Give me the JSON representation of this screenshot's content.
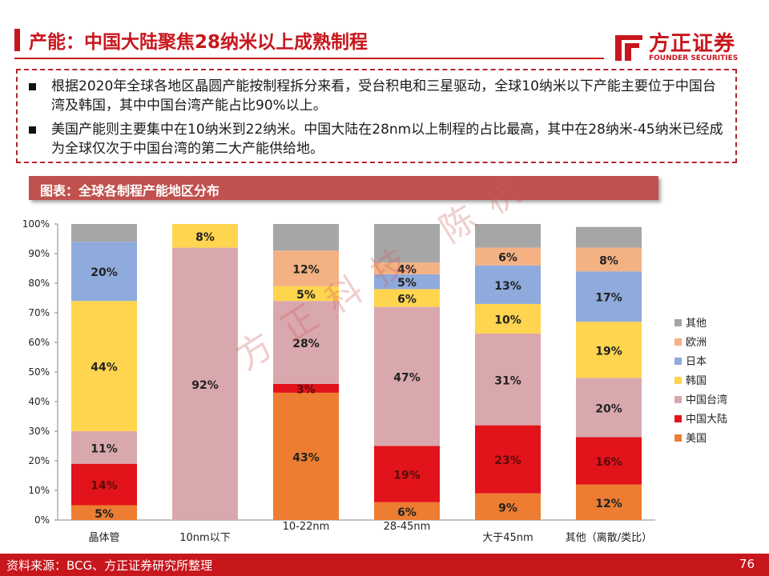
{
  "header": {
    "title": "产能：中国大陆聚焦28纳米以上成熟制程",
    "logo_cn": "方正证券",
    "logo_en": "FOUNDER SECURITIES"
  },
  "notes": [
    "根据2020年全球各地区晶圆产能按制程拆分来看，受台积电和三星驱动，全球10纳米以下产能主要位于中国台湾及韩国，其中中国台湾产能占比90%以上。",
    "美国产能则主要集中在10纳米到22纳米。中国大陆在28nm以上制程的占比最高，其中在28纳米-45纳米已经成为全球仅次于中国台湾的第二大产能供给地。"
  ],
  "chart_banner": "图表：全球各制程产能地区分布",
  "watermark": "方正科技 陈杭",
  "footer": {
    "source": "资料来源：BCG、方正证券研究所整理",
    "page": "76"
  },
  "colors": {
    "brand_red": "#c8161d",
    "美国": "#ed7d31",
    "中国大陆": "#e3131b",
    "中国台湾": "#d9a8ad",
    "韩国": "#ffd44f",
    "日本": "#8faadc",
    "欧洲": "#f4b183",
    "其他": "#a6a6a6"
  },
  "chart_data": {
    "type": "bar",
    "stacked": true,
    "percent": true,
    "categories": [
      "晶体管",
      "10nm以下",
      "10-22nm",
      "28-45nm",
      "大于45nm",
      "其他（离散/类比）"
    ],
    "series": [
      {
        "name": "美国",
        "values": [
          5,
          0,
          43,
          6,
          9,
          12
        ],
        "labels": [
          "5%",
          "",
          "43%",
          "6%",
          "9%",
          "12%"
        ]
      },
      {
        "name": "中国大陆",
        "values": [
          14,
          0,
          3,
          19,
          23,
          16
        ],
        "labels": [
          "14%",
          "",
          "3%",
          "19%",
          "23%",
          "16%"
        ]
      },
      {
        "name": "中国台湾",
        "values": [
          11,
          92,
          28,
          47,
          31,
          20
        ],
        "labels": [
          "11%",
          "92%",
          "28%",
          "47%",
          "31%",
          "20%"
        ]
      },
      {
        "name": "韩国",
        "values": [
          44,
          8,
          5,
          6,
          10,
          19
        ],
        "labels": [
          "44%",
          "8%",
          "5%",
          "6%",
          "10%",
          "19%"
        ]
      },
      {
        "name": "日本",
        "values": [
          20,
          0,
          0,
          5,
          13,
          17
        ],
        "labels": [
          "20%",
          "",
          "",
          "5%",
          "13%",
          "17%"
        ]
      },
      {
        "name": "欧洲",
        "values": [
          0,
          0,
          12,
          4,
          6,
          8
        ],
        "labels": [
          "",
          "",
          "12%",
          "4%",
          "6%",
          "8%"
        ]
      },
      {
        "name": "其他",
        "values": [
          6,
          0,
          9,
          13,
          8,
          7
        ],
        "labels": [
          "",
          "",
          "",
          "",
          "",
          ""
        ]
      }
    ],
    "y_ticks": [
      "0%",
      "10%",
      "20%",
      "30%",
      "40%",
      "50%",
      "60%",
      "70%",
      "80%",
      "90%",
      "100%"
    ],
    "ylim": [
      0,
      100
    ],
    "legend_order": [
      "其他",
      "欧洲",
      "日本",
      "韩国",
      "中国台湾",
      "中国大陆",
      "美国"
    ],
    "legend_position": "right",
    "grid": false
  }
}
